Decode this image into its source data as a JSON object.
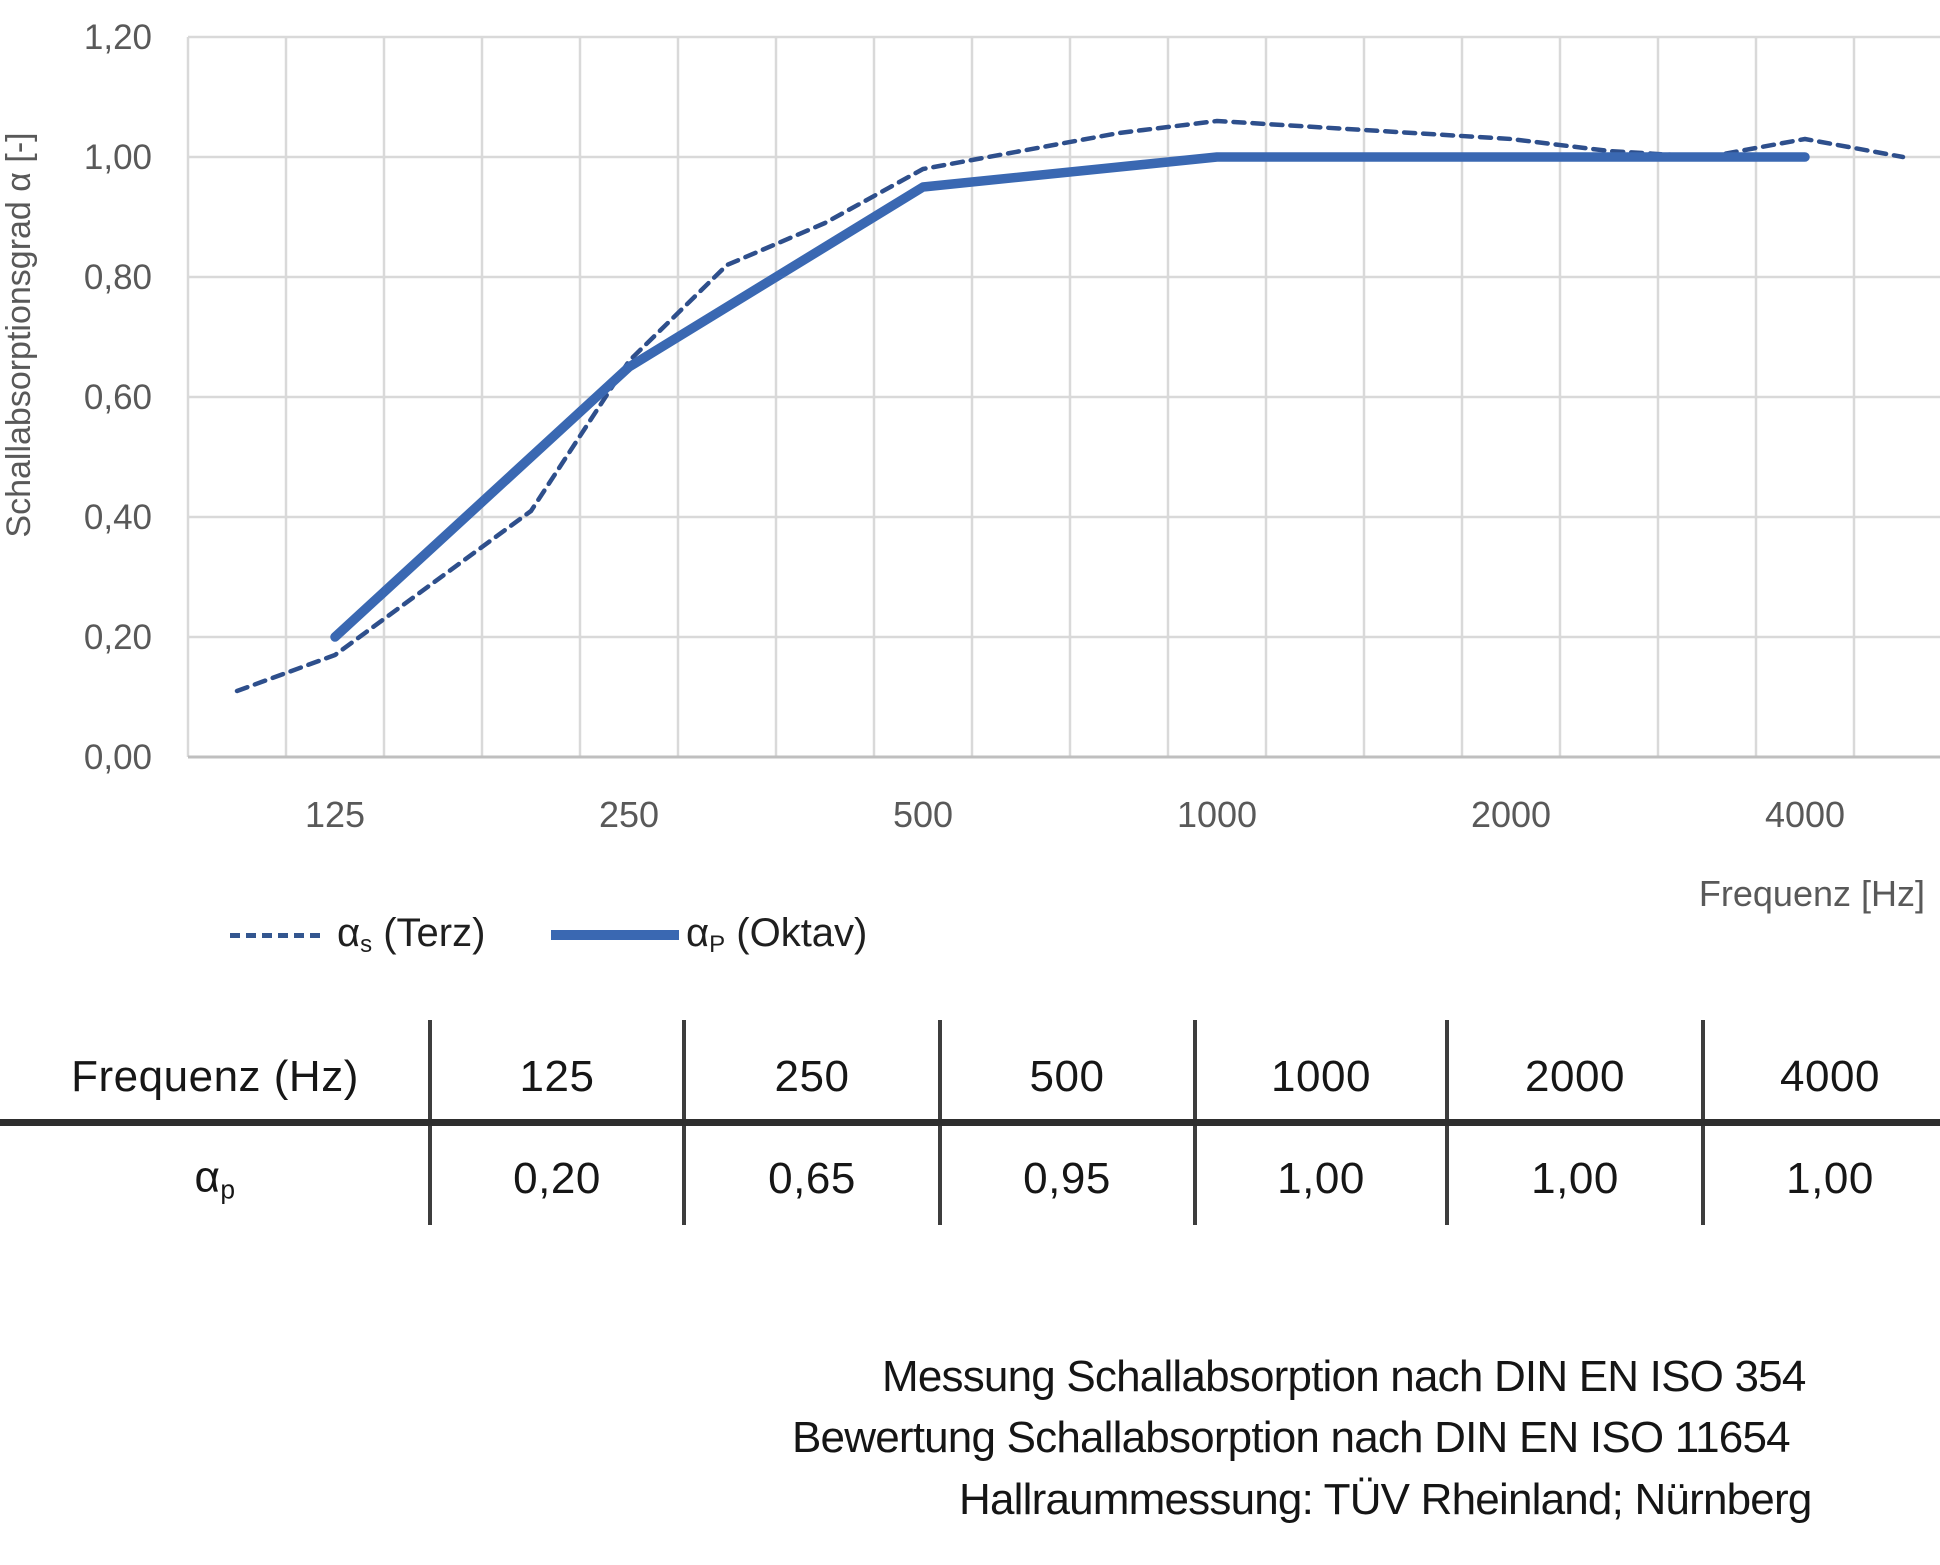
{
  "chart": {
    "y_axis_title": "Schallabsorptionsgrad α [-]",
    "x_axis_title": "Frequenz [Hz]",
    "y_ticks": [
      {
        "label": "1,20",
        "value": 1.2
      },
      {
        "label": "1,00",
        "value": 1.0
      },
      {
        "label": "0,80",
        "value": 0.8
      },
      {
        "label": "0,60",
        "value": 0.6
      },
      {
        "label": "0,40",
        "value": 0.4
      },
      {
        "label": "0,20",
        "value": 0.2
      },
      {
        "label": "0,00",
        "value": 0.0
      }
    ],
    "x_ticks": [
      {
        "label": "125",
        "freq": 125
      },
      {
        "label": "250",
        "freq": 250
      },
      {
        "label": "500",
        "freq": 500
      },
      {
        "label": "1000",
        "freq": 1000
      },
      {
        "label": "2000",
        "freq": 2000
      },
      {
        "label": "4000",
        "freq": 4000
      }
    ],
    "colors": {
      "grid": "#d9d9d9",
      "axis_line": "#bfbfbf",
      "tick_text": "#595959",
      "series_terz_dashed": "#2e4f8c",
      "series_oktav_solid": "#3a68b2"
    },
    "legend": {
      "terz": {
        "alpha": "α",
        "sub": "s",
        "rest": " (Terz)"
      },
      "oktav": {
        "alpha": "α",
        "sub": "P",
        "rest": " (Oktav)"
      }
    }
  },
  "chart_data": {
    "type": "line",
    "x_scale": "third-octave-band categories",
    "x_categories": [
      100,
      125,
      160,
      200,
      250,
      315,
      400,
      500,
      630,
      800,
      1000,
      1250,
      1600,
      2000,
      2500,
      3150,
      4000,
      5000
    ],
    "series": [
      {
        "name": "αs (Terz)",
        "style": "dashed",
        "x": [
          100,
          125,
          160,
          200,
          250,
          315,
          400,
          500,
          630,
          800,
          1000,
          1250,
          1600,
          2000,
          2500,
          3150,
          4000,
          5000
        ],
        "values": [
          0.11,
          0.17,
          0.29,
          0.41,
          0.66,
          0.82,
          0.89,
          0.98,
          1.01,
          1.04,
          1.06,
          1.05,
          1.04,
          1.03,
          1.01,
          1.0,
          1.03,
          1.0
        ]
      },
      {
        "name": "αP (Oktav)",
        "style": "solid",
        "x": [
          125,
          250,
          500,
          1000,
          2000,
          4000
        ],
        "values": [
          0.2,
          0.65,
          0.95,
          1.0,
          1.0,
          1.0
        ]
      }
    ],
    "ylim": [
      0,
      1.2
    ],
    "y_major_step": 0.2,
    "grid": true,
    "legend_position": "below-left"
  },
  "table": {
    "header_label": "Frequenz (Hz)",
    "row_label": {
      "alpha": "α",
      "sub": "p"
    },
    "columns": [
      "125",
      "250",
      "500",
      "1000",
      "2000",
      "4000"
    ],
    "values": [
      "0,20",
      "0,65",
      "0,95",
      "1,00",
      "1,00",
      "1,00"
    ]
  },
  "footer": {
    "lines": [
      "Messung Schallabsorption nach DIN EN ISO 354",
      "Bewertung Schallabsorption nach DIN EN ISO 11654",
      "Hallraummessung: TÜV Rheinland; Nürnberg"
    ]
  }
}
